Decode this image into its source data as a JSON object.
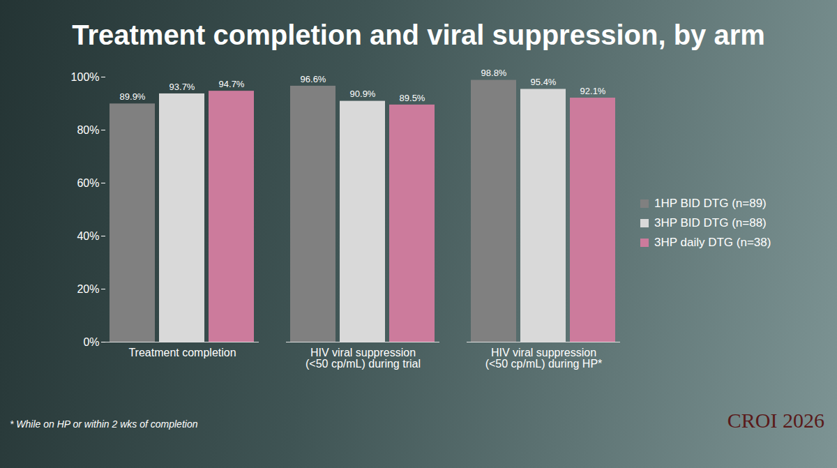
{
  "chart_data": {
    "type": "bar",
    "title": "Treatment completion and viral suppression, by arm",
    "categories": [
      "Treatment completion",
      "HIV viral suppression (<50 cp/mL) during trial",
      "HIV viral suppression (<50 cp/mL) during HP*"
    ],
    "series": [
      {
        "name": "1HP BID DTG (n=89)",
        "color": "#808080",
        "values": [
          89.9,
          96.6,
          98.8
        ],
        "value_labels": [
          "89.9%",
          "96.6%",
          "98.8%"
        ]
      },
      {
        "name": "3HP BID DTG (n=88)",
        "color": "#d9d9d9",
        "values": [
          93.7,
          90.9,
          95.4
        ],
        "value_labels": [
          "93.7%",
          "90.9%",
          "95.4%"
        ]
      },
      {
        "name": "3HP daily DTG (n=38)",
        "color": "#cc7b9c",
        "values": [
          94.7,
          89.5,
          92.1
        ],
        "value_labels": [
          "94.7%",
          "89.5%",
          "92.1%"
        ]
      }
    ],
    "ylim": [
      0,
      100
    ],
    "yticks": [
      {
        "value": 0,
        "label": "0%"
      },
      {
        "value": 20,
        "label": "20%"
      },
      {
        "value": 40,
        "label": "40%"
      },
      {
        "value": 60,
        "label": "60%"
      },
      {
        "value": 80,
        "label": "80%"
      },
      {
        "value": 100,
        "label": "100%"
      }
    ],
    "grid": false,
    "legend": "right",
    "data_labels": true,
    "annotations": [
      "* While on HP or within 2 wks of completion",
      "CROI 2026"
    ]
  }
}
